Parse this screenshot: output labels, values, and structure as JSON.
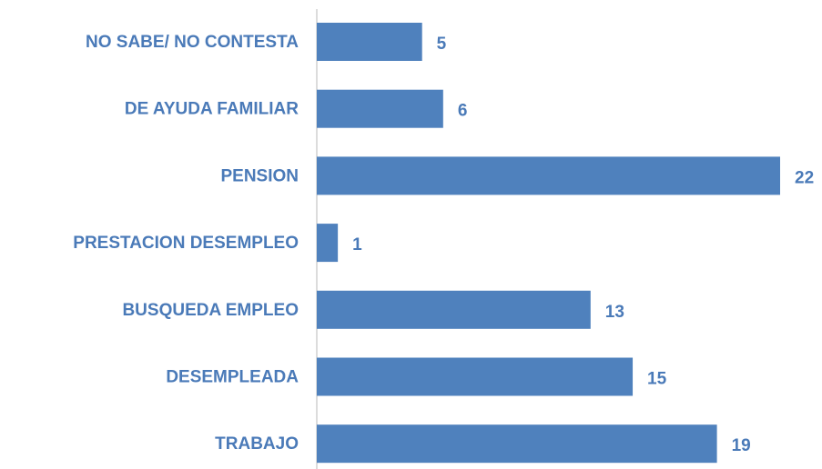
{
  "chart_data": {
    "type": "bar",
    "orientation": "horizontal",
    "categories": [
      "NO SABE/ NO CONTESTA",
      "DE AYUDA FAMILIAR",
      "PENSION",
      "PRESTACION DESEMPLEO",
      "BUSQUEDA EMPLEO",
      "DESEMPLEADA",
      "TRABAJO"
    ],
    "values": [
      5,
      6,
      22,
      1,
      13,
      15,
      19
    ],
    "color": "#4f81bd"
  }
}
